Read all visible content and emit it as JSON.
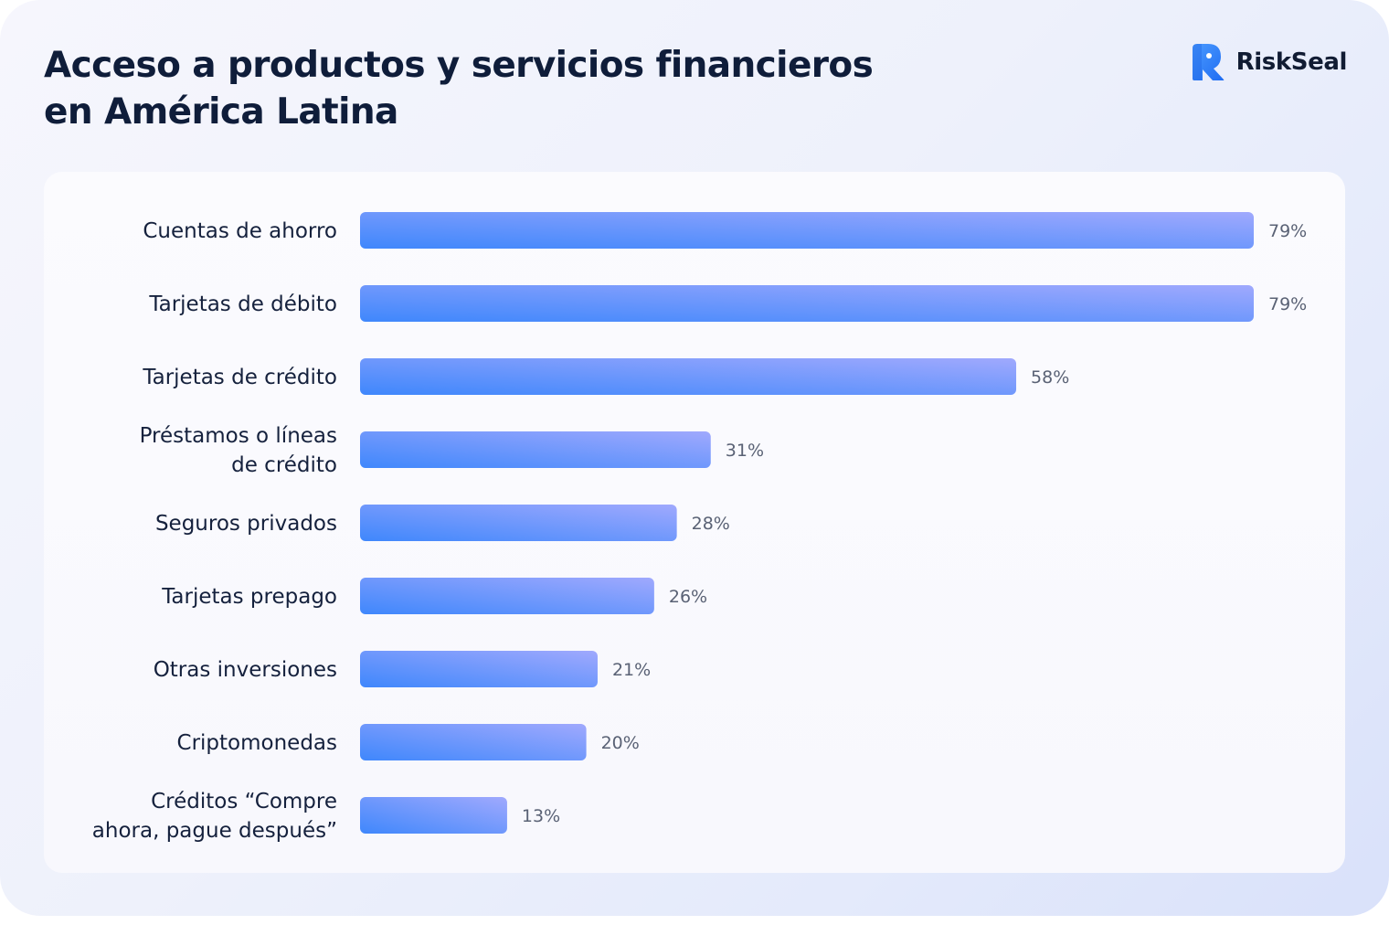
{
  "header": {
    "title_line1": "Acceso a productos y servicios financieros",
    "title_line2": "en América Latina",
    "brand": "RiskSeal"
  },
  "colors": {
    "bar_start": "#3f87fc",
    "bar_end": "#a0a9fd",
    "title": "#0f1d3a",
    "brand_blue": "#2f7ff9"
  },
  "icons": {
    "logo": "riskseal-logo-icon"
  },
  "chart_data": {
    "type": "bar",
    "orientation": "horizontal",
    "categories": [
      [
        "Cuentas de ahorro"
      ],
      [
        "Tarjetas de débito"
      ],
      [
        "Tarjetas de crédito"
      ],
      [
        "Préstamos o líneas",
        "de crédito"
      ],
      [
        "Seguros privados"
      ],
      [
        "Tarjetas prepago"
      ],
      [
        "Otras inversiones"
      ],
      [
        "Criptomonedas"
      ],
      [
        "Créditos “Compre",
        "ahora, pague después”"
      ]
    ],
    "values": [
      79,
      79,
      58,
      31,
      28,
      26,
      21,
      20,
      13
    ],
    "value_labels": [
      "79%",
      "79%",
      "58%",
      "31%",
      "28%",
      "26%",
      "21%",
      "20%",
      "13%"
    ],
    "unit": "%",
    "xlim": [
      0,
      79
    ],
    "grid": false,
    "legend": "none"
  }
}
